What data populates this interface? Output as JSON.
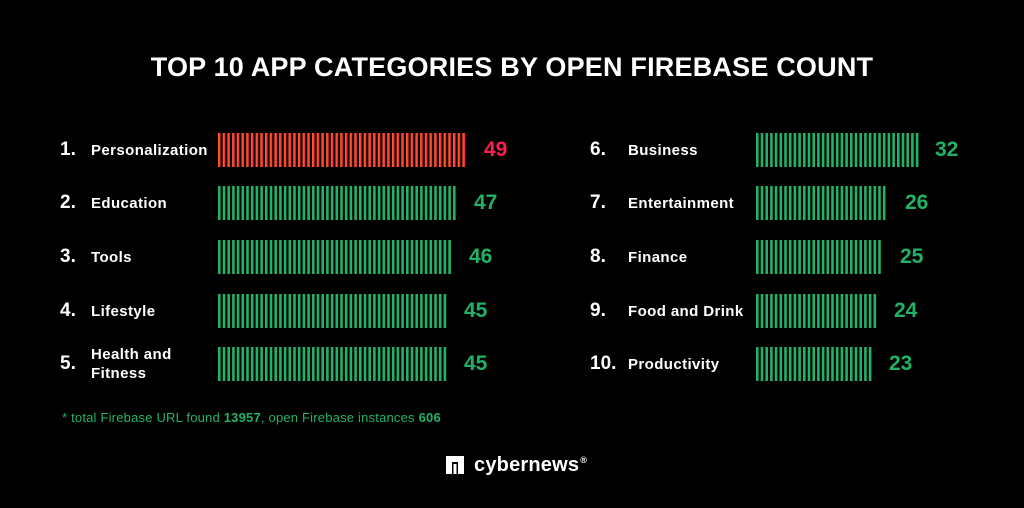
{
  "title": "TOP 10 APP CATEGORIES BY OPEN FIREBASE COUNT",
  "colors": {
    "background": "#000000",
    "text": "#ffffff",
    "green": "#21b266",
    "red_start": "#ff6a1a",
    "red_end": "#ff1a4b",
    "value_red": "#ff1f4f"
  },
  "chart_data": {
    "type": "bar",
    "orientation": "horizontal",
    "categories": [
      "Personalization",
      "Education",
      "Tools",
      "Lifestyle",
      "Health and Fitness",
      "Business",
      "Entertainment",
      "Finance",
      "Food and Drink",
      "Productivity"
    ],
    "ranks": [
      "1.",
      "2.",
      "3.",
      "4.",
      "5.",
      "6.",
      "7.",
      "8.",
      "9.",
      "10."
    ],
    "values": [
      49,
      47,
      46,
      45,
      45,
      32,
      26,
      25,
      24,
      23
    ],
    "highlight_index": 0,
    "grid": false,
    "legend": "none"
  },
  "footnote": {
    "prefix": "* total Firebase URL found ",
    "total": "13957",
    "middle": ", open Firebase instances ",
    "open": "606"
  },
  "brand": {
    "name": "cybernews",
    "reg": "®",
    "icon": "cybernews-logo-icon"
  }
}
